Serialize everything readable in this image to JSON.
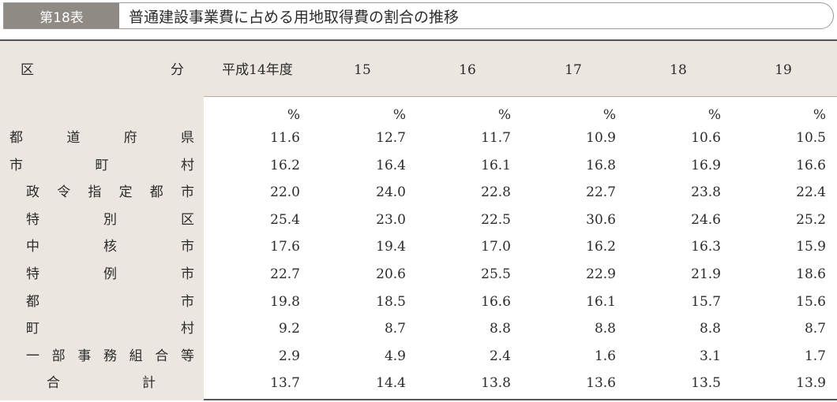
{
  "title": {
    "tag": "第18表",
    "text": "普通建設事業費に占める用地取得費の割合の推移"
  },
  "header": {
    "label_left": "区",
    "label_right": "分",
    "years": [
      "平成14年度",
      "15",
      "16",
      "17",
      "18",
      "19"
    ]
  },
  "unit": "%",
  "rows": [
    {
      "label": "都道府県",
      "values": [
        "11.6",
        "12.7",
        "11.7",
        "10.9",
        "10.6",
        "10.5"
      ]
    },
    {
      "label": "市町村",
      "values": [
        "16.2",
        "16.4",
        "16.1",
        "16.8",
        "16.9",
        "16.6"
      ]
    },
    {
      "label": "政令指定都市",
      "values": [
        "22.0",
        "24.0",
        "22.8",
        "22.7",
        "23.8",
        "22.4"
      ]
    },
    {
      "label": "特別区",
      "values": [
        "25.4",
        "23.0",
        "22.5",
        "30.6",
        "24.6",
        "25.2"
      ]
    },
    {
      "label": "中核市",
      "values": [
        "17.6",
        "19.4",
        "17.0",
        "16.2",
        "16.3",
        "15.9"
      ]
    },
    {
      "label": "特例市",
      "values": [
        "22.7",
        "20.6",
        "25.5",
        "22.9",
        "21.9",
        "18.6"
      ]
    },
    {
      "label": "都市",
      "values": [
        "19.8",
        "18.5",
        "16.6",
        "16.1",
        "15.7",
        "15.6"
      ]
    },
    {
      "label": "町村",
      "values": [
        "9.2",
        "8.7",
        "8.8",
        "8.8",
        "8.8",
        "8.7"
      ]
    },
    {
      "label": "一部事務組合等",
      "values": [
        "2.9",
        "4.9",
        "2.4",
        "1.6",
        "3.1",
        "1.7"
      ]
    },
    {
      "label": "合計",
      "values": [
        "13.7",
        "14.4",
        "13.8",
        "13.6",
        "13.5",
        "13.9"
      ]
    }
  ]
}
